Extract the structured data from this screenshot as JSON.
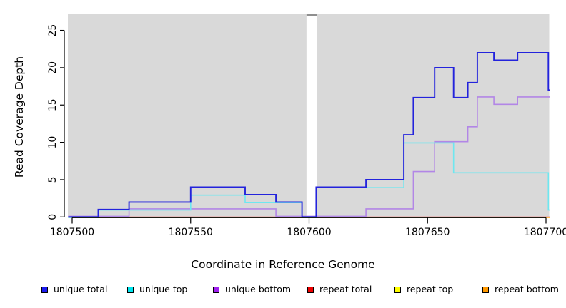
{
  "page": {
    "background": "#ffffff"
  },
  "titles": {
    "x_axis": "Coordinate in Reference Genome",
    "y_axis": "Read Coverage Depth"
  },
  "chart_data": {
    "type": "line",
    "subtype": "step-coverage",
    "title": "",
    "xlabel": "Coordinate in Reference Genome",
    "ylabel": "Read Coverage Depth",
    "xlim": [
      1807498.3,
      1807701.5
    ],
    "ylim": [
      0,
      27.1
    ],
    "x_ticks": [
      1807500,
      1807550,
      1807600,
      1807650,
      1807700
    ],
    "y_ticks": [
      0,
      5,
      10,
      15,
      20,
      25
    ],
    "grid": false,
    "plot_background": "#d9d9d9",
    "axis_color": "#000000",
    "tick_label_color": "#000000",
    "legend_position": "bottom",
    "gap_band": {
      "x_start": 1807598.9,
      "x_end": 1807603.2,
      "color": "#ffffff",
      "top_cap_color": "#8f8f8f"
    },
    "breakpoint_format": "[coordinate, depth value from that coordinate onward]",
    "series": [
      {
        "name": "unique total",
        "line_color": "#2323dc",
        "legend_color": "#1a1aee",
        "breakpoints": [
          [
            1807498.3,
            0
          ],
          [
            1807511,
            1
          ],
          [
            1807524,
            2
          ],
          [
            1807550,
            4
          ],
          [
            1807573,
            3
          ],
          [
            1807586,
            2
          ],
          [
            1807597,
            0
          ],
          [
            1807603,
            4
          ],
          [
            1807624,
            5
          ],
          [
            1807640,
            11
          ],
          [
            1807644,
            16
          ],
          [
            1807653,
            20
          ],
          [
            1807661,
            16
          ],
          [
            1807667,
            18
          ],
          [
            1807671,
            22
          ],
          [
            1807678,
            21
          ],
          [
            1807688,
            22
          ],
          [
            1807701,
            17
          ],
          [
            1807701.5,
            17
          ]
        ]
      },
      {
        "name": "unique top",
        "line_color": "#6ee7f0",
        "legend_color": "#00e5ee",
        "breakpoints": [
          [
            1807498.3,
            0
          ],
          [
            1807511,
            1
          ],
          [
            1807550,
            3
          ],
          [
            1807573,
            2
          ],
          [
            1807597,
            0
          ],
          [
            1807603,
            4
          ],
          [
            1807640,
            10
          ],
          [
            1807661,
            6
          ],
          [
            1807701,
            1
          ],
          [
            1807701.5,
            1
          ]
        ]
      },
      {
        "name": "unique bottom",
        "line_color": "#b286e6",
        "legend_color": "#a020f0",
        "breakpoints": [
          [
            1807498.3,
            0
          ],
          [
            1807524,
            1
          ],
          [
            1807586,
            0
          ],
          [
            1807624,
            1
          ],
          [
            1807644,
            6
          ],
          [
            1807653,
            10
          ],
          [
            1807667,
            12
          ],
          [
            1807671,
            16
          ],
          [
            1807678,
            15
          ],
          [
            1807688,
            16
          ],
          [
            1807701.5,
            16
          ]
        ]
      },
      {
        "name": "repeat total",
        "line_color": "#d94040",
        "legend_color": "#ee0000",
        "breakpoints": [
          [
            1807498.3,
            0
          ],
          [
            1807701.5,
            0
          ]
        ]
      },
      {
        "name": "repeat top",
        "line_color": "#ffff44",
        "legend_color": "#ffff00",
        "breakpoints": [
          [
            1807498.3,
            0
          ],
          [
            1807701.5,
            0
          ]
        ]
      },
      {
        "name": "repeat bottom",
        "line_color": "#ff9f1a",
        "legend_color": "#ff9800",
        "breakpoints": [
          [
            1807498.3,
            0
          ],
          [
            1807701.5,
            0
          ]
        ]
      }
    ]
  }
}
